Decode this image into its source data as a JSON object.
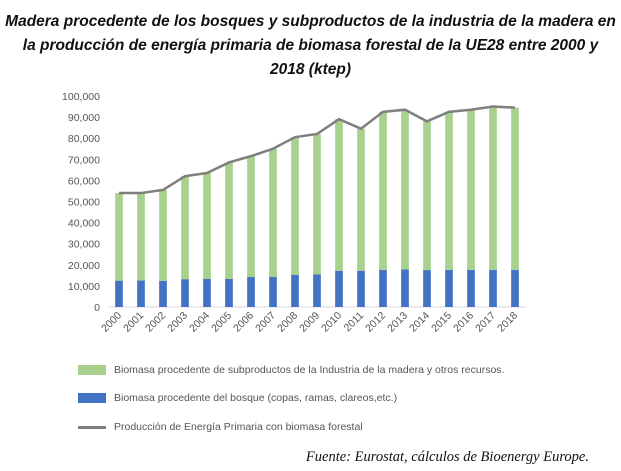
{
  "title": "Madera procedente de los bosques y subproductos de la industria de la madera en la producción de energía primaria de biomasa forestal de la UE28 entre 2000 y 2018 (ktep)",
  "source": "Fuente: Eurostat, cálculos de Bioenergy Europe.",
  "colors": {
    "subproductos": "#a9d18e",
    "bosque": "#4472c4",
    "total": "#7f7f7f",
    "grid": "#d9d9d9"
  },
  "chart_data": {
    "type": "bar",
    "stacked": true,
    "categories": [
      "2000",
      "2001",
      "2002",
      "2003",
      "2004",
      "2005",
      "2006",
      "2007",
      "2008",
      "2009",
      "2010",
      "2011",
      "2012",
      "2013",
      "2014",
      "2015",
      "2016",
      "2017",
      "2018"
    ],
    "series": [
      {
        "name": "Biomasa procedente del bosque (copas, ramas, clareos,etc.)",
        "type": "bar",
        "color": "#4472c4",
        "values": [
          12500,
          12600,
          12400,
          13200,
          13300,
          13300,
          14200,
          14300,
          15300,
          15400,
          17200,
          17200,
          17600,
          17800,
          17500,
          17600,
          17600,
          17600,
          17600
        ]
      },
      {
        "name": "Biomasa procedente de subproductos de la Industria de la madera y otros recursos.",
        "type": "bar",
        "color": "#a9d18e",
        "values": [
          41500,
          41400,
          43100,
          48800,
          50200,
          55200,
          57300,
          60700,
          65200,
          66600,
          71800,
          67300,
          74900,
          75700,
          70500,
          74900,
          75900,
          77400,
          76900
        ]
      },
      {
        "name": "Producción de Energía Primaria con biomasa forestal",
        "type": "line",
        "color": "#7f7f7f",
        "values": [
          54000,
          54000,
          55500,
          62000,
          63500,
          68500,
          71500,
          75000,
          80500,
          82000,
          89000,
          84500,
          92500,
          93500,
          88000,
          92500,
          93500,
          95000,
          94500
        ]
      }
    ],
    "yticks": [
      "0",
      "10,000",
      "20,000",
      "30,000",
      "40,000",
      "50,000",
      "60,000",
      "70,000",
      "80,000",
      "90,000",
      "100,000"
    ],
    "ylim": [
      0,
      100000
    ],
    "grid": false,
    "legend_position": "bottom"
  }
}
